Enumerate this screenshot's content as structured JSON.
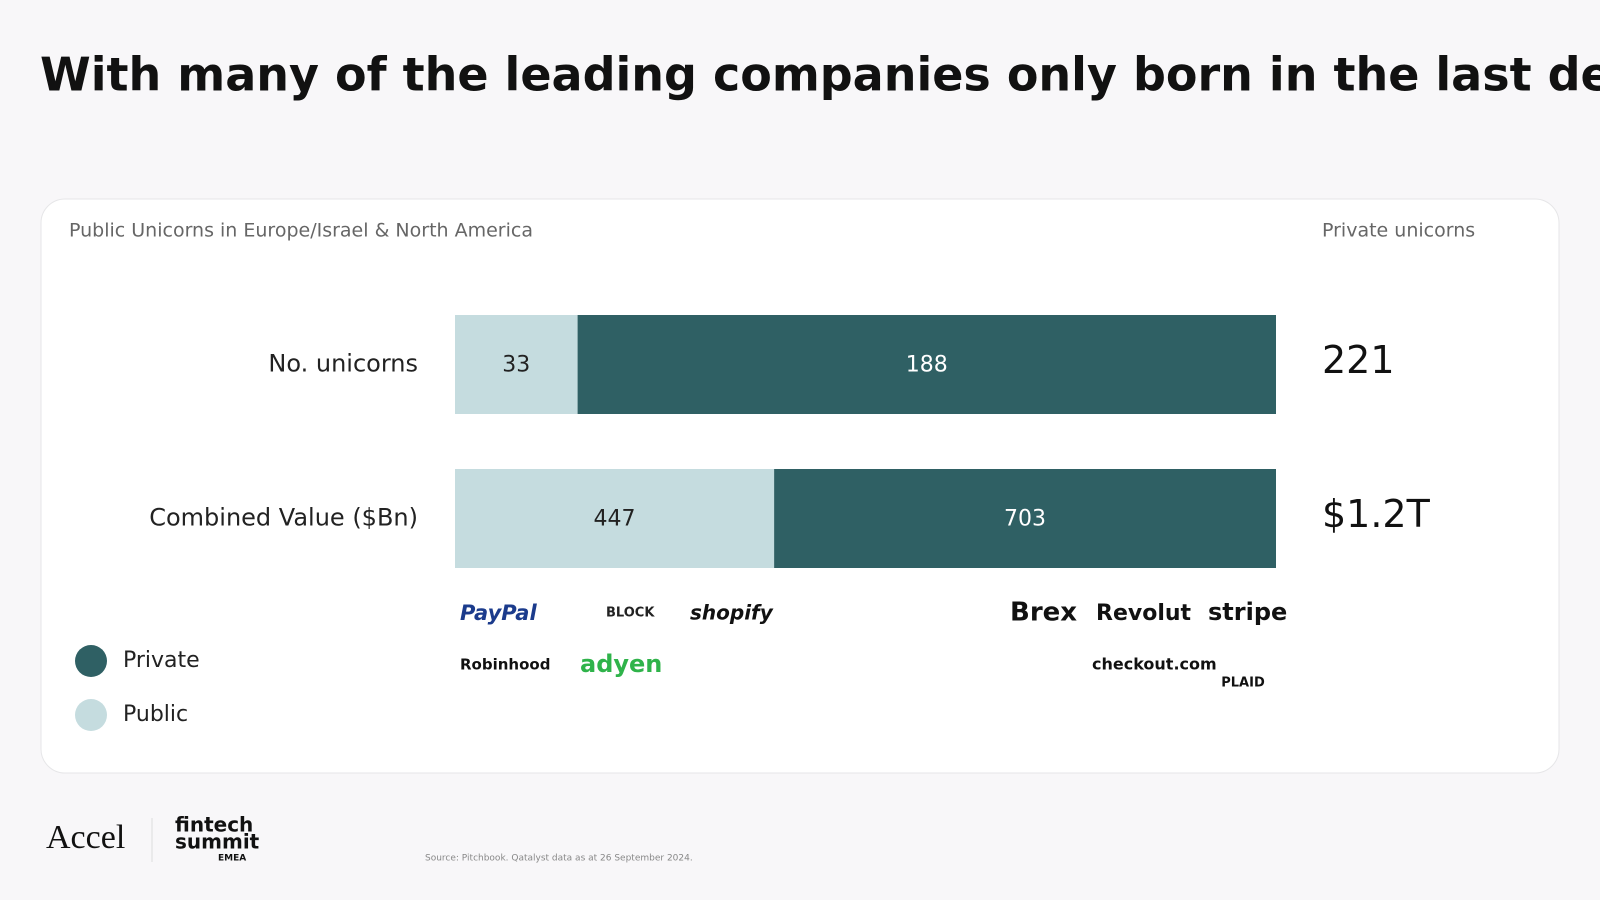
{
  "header": {
    "title": "With many of the leading companies only born in the last decade and still private"
  },
  "chart_data": {
    "type": "bar",
    "orientation": "horizontal",
    "stacking": "percent",
    "subtitle": "Public Unicorns in Europe/Israel & North America",
    "totals_title": "Private unicorns",
    "categories": [
      "No. unicorns",
      "Combined Value ($Bn)"
    ],
    "series": [
      {
        "name": "Public",
        "color": "#c5dcdf",
        "values": [
          33,
          447
        ]
      },
      {
        "name": "Private",
        "color": "#2f6064",
        "values": [
          188,
          703
        ]
      }
    ],
    "totals": {
      "values": [
        221,
        1200
      ],
      "value_labels": [
        "221",
        "$1.2T"
      ]
    }
  },
  "logos": {
    "public": [
      "PayPal",
      "BLOCK",
      "shopify",
      "Robinhood",
      "adyen"
    ],
    "private": [
      "Brex",
      "Revolut",
      "stripe",
      "checkout.com",
      "PLAID"
    ]
  },
  "footer": {
    "brand": "Accel",
    "event": [
      "fintech",
      "summit",
      "EMEA"
    ],
    "source": "Source: Pitchbook. Qatalyst data as at 26 September 2024."
  }
}
